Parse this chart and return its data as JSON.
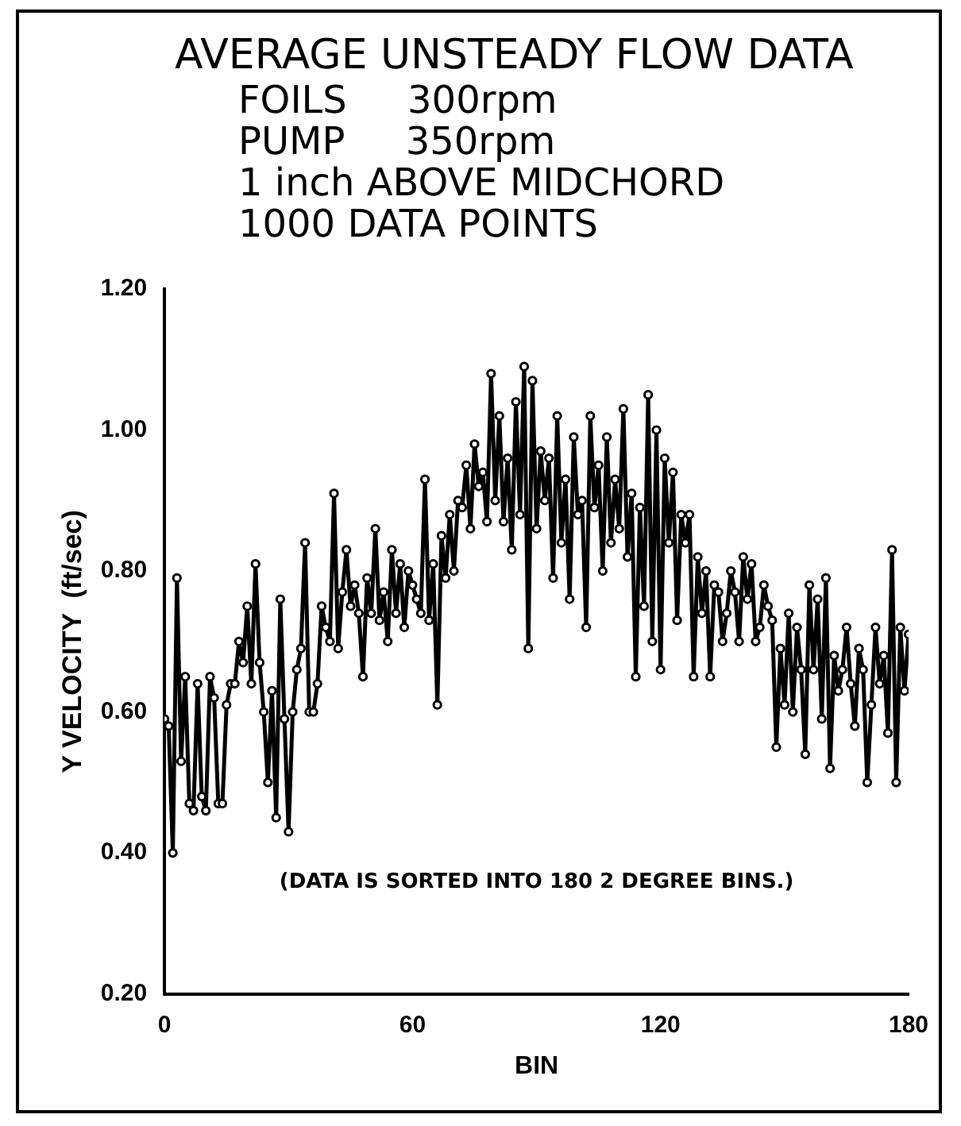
{
  "chart_data": {
    "type": "line",
    "title": "AVERAGE UNSTEADY FLOW DATA",
    "subtitle": "FOILS     300rpm\nPUMP     350rpm\n1 inch ABOVE MIDCHORD\n1000 DATA POINTS",
    "xlabel": "BIN",
    "ylabel": "Y VELOCITY  (ft/sec)",
    "annotations": [
      "(DATA IS SORTED INTO 180 2 DEGREE BINS.)"
    ],
    "xlim": [
      0,
      180
    ],
    "xticks": [
      0,
      60,
      120,
      180
    ],
    "ylim": [
      0.2,
      1.2
    ],
    "yticks": [
      {
        "value": 0.2,
        "label": "0.20"
      },
      {
        "value": 0.4,
        "label": "0.40"
      },
      {
        "value": 0.6,
        "label": "0.60"
      },
      {
        "value": 0.8,
        "label": "0.80"
      },
      {
        "value": 1.0,
        "label": "1.00"
      },
      {
        "value": 1.2,
        "label": "1.20"
      }
    ],
    "marker": "circle",
    "grid": false,
    "legend": false,
    "series": [
      {
        "color": "#000000",
        "x": [
          0,
          1,
          2,
          3,
          4,
          5,
          6,
          7,
          8,
          9,
          10,
          11,
          12,
          13,
          14,
          15,
          16,
          17,
          18,
          19,
          20,
          21,
          22,
          23,
          24,
          25,
          26,
          27,
          28,
          29,
          30,
          31,
          32,
          33,
          34,
          35,
          36,
          37,
          38,
          39,
          40,
          41,
          42,
          43,
          44,
          45,
          46,
          47,
          48,
          49,
          50,
          51,
          52,
          53,
          54,
          55,
          56,
          57,
          58,
          59,
          60,
          61,
          62,
          63,
          64,
          65,
          66,
          67,
          68,
          69,
          70,
          71,
          72,
          73,
          74,
          75,
          76,
          77,
          78,
          79,
          80,
          81,
          82,
          83,
          84,
          85,
          86,
          87,
          88,
          89,
          90,
          91,
          92,
          93,
          94,
          95,
          96,
          97,
          98,
          99,
          100,
          101,
          102,
          103,
          104,
          105,
          106,
          107,
          108,
          109,
          110,
          111,
          112,
          113,
          114,
          115,
          116,
          117,
          118,
          119,
          120,
          121,
          122,
          123,
          124,
          125,
          126,
          127,
          128,
          129,
          130,
          131,
          132,
          133,
          134,
          135,
          136,
          137,
          138,
          139,
          140,
          141,
          142,
          143,
          144,
          145,
          146,
          147,
          148,
          149,
          150,
          151,
          152,
          153,
          154,
          155,
          156,
          157,
          158,
          159,
          160,
          161,
          162,
          163,
          164,
          165,
          166,
          167,
          168,
          169,
          170,
          171,
          172,
          173,
          174,
          175,
          176,
          177,
          178,
          179,
          180
        ],
        "values": [
          0.59,
          0.58,
          0.4,
          0.79,
          0.53,
          0.65,
          0.47,
          0.46,
          0.64,
          0.48,
          0.46,
          0.65,
          0.62,
          0.47,
          0.47,
          0.61,
          0.64,
          0.64,
          0.7,
          0.67,
          0.75,
          0.64,
          0.81,
          0.67,
          0.6,
          0.5,
          0.63,
          0.45,
          0.76,
          0.59,
          0.43,
          0.6,
          0.66,
          0.69,
          0.84,
          0.6,
          0.6,
          0.64,
          0.75,
          0.72,
          0.7,
          0.91,
          0.69,
          0.77,
          0.83,
          0.75,
          0.78,
          0.74,
          0.65,
          0.79,
          0.74,
          0.86,
          0.73,
          0.77,
          0.7,
          0.83,
          0.74,
          0.81,
          0.72,
          0.8,
          0.78,
          0.76,
          0.74,
          0.93,
          0.73,
          0.81,
          0.61,
          0.85,
          0.79,
          0.88,
          0.8,
          0.9,
          0.89,
          0.95,
          0.86,
          0.98,
          0.92,
          0.94,
          0.87,
          1.08,
          0.9,
          1.02,
          0.87,
          0.96,
          0.83,
          1.04,
          0.88,
          1.09,
          0.69,
          1.07,
          0.86,
          0.97,
          0.9,
          0.96,
          0.79,
          1.02,
          0.84,
          0.93,
          0.76,
          0.99,
          0.88,
          0.9,
          0.72,
          1.02,
          0.89,
          0.95,
          0.8,
          0.99,
          0.84,
          0.93,
          0.86,
          1.03,
          0.82,
          0.91,
          0.65,
          0.89,
          0.75,
          1.05,
          0.7,
          1.0,
          0.66,
          0.96,
          0.84,
          0.94,
          0.73,
          0.88,
          0.84,
          0.88,
          0.65,
          0.82,
          0.74,
          0.8,
          0.65,
          0.78,
          0.77,
          0.7,
          0.74,
          0.8,
          0.77,
          0.7,
          0.82,
          0.76,
          0.81,
          0.7,
          0.72,
          0.78,
          0.75,
          0.73,
          0.55,
          0.69,
          0.61,
          0.74,
          0.6,
          0.72,
          0.66,
          0.54,
          0.78,
          0.66,
          0.76,
          0.59,
          0.79,
          0.52,
          0.68,
          0.63,
          0.66,
          0.72,
          0.64,
          0.58,
          0.69,
          0.66,
          0.5,
          0.61,
          0.72,
          0.64,
          0.68,
          0.57,
          0.83,
          0.5,
          0.72,
          0.63,
          0.71
        ]
      }
    ]
  }
}
